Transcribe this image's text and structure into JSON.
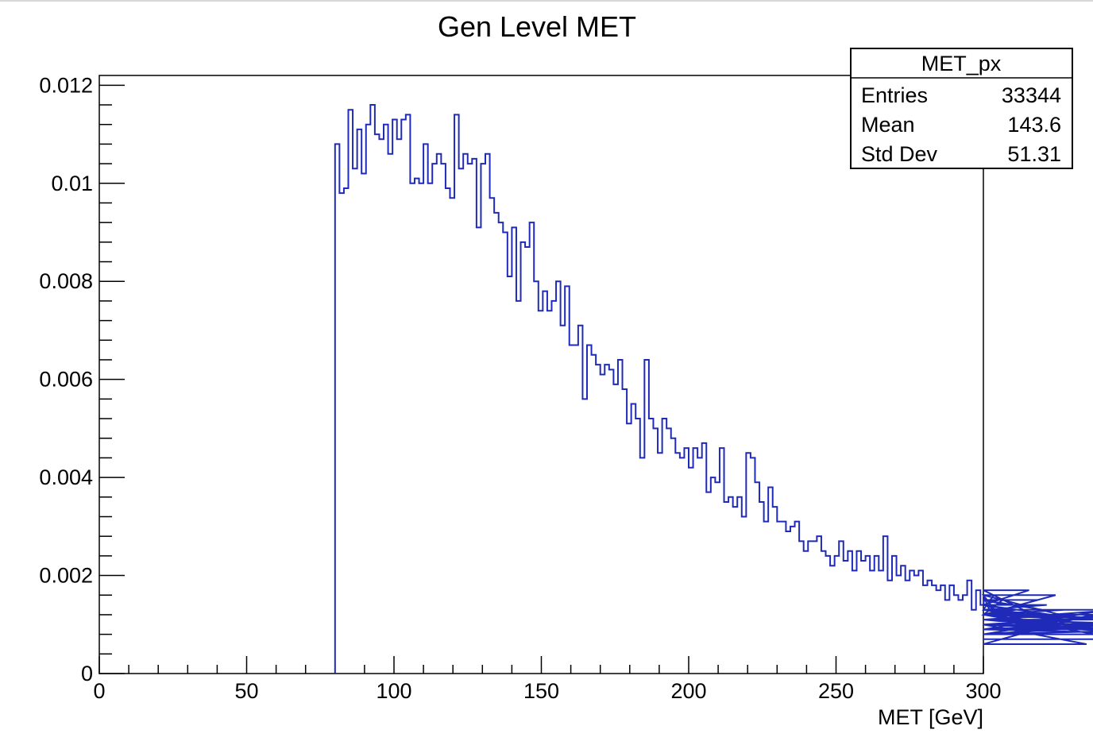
{
  "colors": {
    "histogram_line": "#1f2bb8",
    "frame": "#000000",
    "background": "#ffffff"
  },
  "stats_box": {
    "title": "MET_px",
    "rows": [
      {
        "label": "Entries",
        "value": "33344"
      },
      {
        "label": "Mean",
        "value": "143.6"
      },
      {
        "label": "Std Dev",
        "value": "51.31"
      }
    ]
  },
  "chart_data": {
    "type": "histogram",
    "title": "Gen Level MET",
    "xlabel": "MET [GeV]",
    "ylabel": "",
    "xlim": [
      0,
      300
    ],
    "ylim": [
      0,
      0.0122
    ],
    "bin_width": 1.5,
    "x_ticks": [
      0,
      50,
      100,
      150,
      200,
      250,
      300
    ],
    "x_tick_labels": [
      "0",
      "50",
      "100",
      "150",
      "200",
      "250",
      "300"
    ],
    "y_ticks": [
      0,
      0.002,
      0.004,
      0.006,
      0.008,
      0.01,
      0.012
    ],
    "y_tick_labels": [
      "0",
      "0.002",
      "0.004",
      "0.006",
      "0.008",
      "0.01",
      "0.012"
    ],
    "x_bin_edges_start": 80,
    "values": [
      0.0108,
      0.0098,
      0.0099,
      0.0115,
      0.0103,
      0.0111,
      0.0102,
      0.0112,
      0.0116,
      0.011,
      0.0109,
      0.0112,
      0.0106,
      0.0113,
      0.0109,
      0.0113,
      0.0114,
      0.01,
      0.0101,
      0.01,
      0.0108,
      0.01,
      0.0104,
      0.0106,
      0.0104,
      0.0099,
      0.0097,
      0.0114,
      0.0103,
      0.0106,
      0.0104,
      0.0105,
      0.0091,
      0.0104,
      0.0106,
      0.0097,
      0.0094,
      0.0092,
      0.009,
      0.0081,
      0.0091,
      0.0076,
      0.0088,
      0.0087,
      0.0092,
      0.008,
      0.0074,
      0.0078,
      0.0074,
      0.0076,
      0.008,
      0.0071,
      0.0079,
      0.0067,
      0.0067,
      0.0071,
      0.0056,
      0.0067,
      0.0065,
      0.0063,
      0.0061,
      0.0063,
      0.0062,
      0.0059,
      0.0064,
      0.0058,
      0.0051,
      0.0055,
      0.0052,
      0.0044,
      0.0064,
      0.0052,
      0.005,
      0.0045,
      0.0052,
      0.005,
      0.0048,
      0.0045,
      0.0044,
      0.0046,
      0.0042,
      0.0046,
      0.0044,
      0.0047,
      0.0037,
      0.004,
      0.0039,
      0.0046,
      0.0035,
      0.0036,
      0.0034,
      0.0036,
      0.0032,
      0.0045,
      0.0044,
      0.0039,
      0.0035,
      0.0031,
      0.0038,
      0.0034,
      0.0031,
      0.0031,
      0.0029,
      0.003,
      0.0031,
      0.0027,
      0.0025,
      0.0027,
      0.0027,
      0.0028,
      0.0025,
      0.0024,
      0.0022,
      0.0024,
      0.0027,
      0.0023,
      0.0025,
      0.0021,
      0.0025,
      0.0023,
      0.0024,
      0.0021,
      0.0024,
      0.0021,
      0.0028,
      0.0019,
      0.0024,
      0.002,
      0.0022,
      0.0019,
      0.0021,
      0.002,
      0.0021,
      0.0018,
      0.0019,
      0.0018,
      0.0017,
      0.0018,
      0.0015,
      0.0018,
      0.0016,
      0.0015,
      0.0016,
      0.0019,
      0.0013,
      0.0017,
      0.0014,
      0.0016,
      0.0013,
      0.0016,
      0.0012,
      0.0015,
      0.0014,
      0.0012,
      0.0013,
      0.0012,
      0.0014,
      0.0017,
      0.0012,
      0.0015,
      0.0013,
      0.0014,
      0.0012,
      0.0016,
      0.0012,
      0.0013,
      0.0011,
      0.0012,
      0.0011,
      0.001,
      0.0006,
      0.0012,
      0.0008,
      0.0012,
      0.0009,
      0.0013,
      0.0011,
      0.0013,
      0.0009,
      0.001,
      0.0012,
      0.0008,
      0.001,
      0.0012,
      0.0011,
      0.0009,
      0.0011,
      0.001,
      0.0009,
      0.001,
      0.0008,
      0.0009,
      0.0008,
      0.0011,
      0.0007
    ],
    "legend": "top-right",
    "grid": false
  }
}
